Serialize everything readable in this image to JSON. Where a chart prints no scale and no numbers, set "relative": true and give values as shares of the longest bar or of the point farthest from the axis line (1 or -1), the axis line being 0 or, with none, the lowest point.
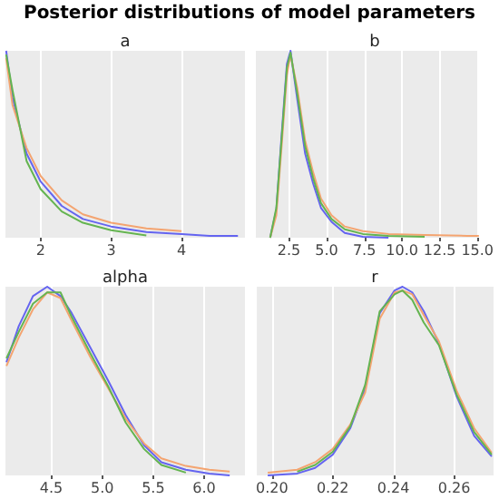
{
  "chart_data": [
    {
      "type": "other",
      "title": "Posterior distributions of model parameters"
    },
    {
      "type": "line",
      "title": "a",
      "relative": true,
      "grid": "x",
      "marker": "none",
      "line_style": "solid",
      "xlim": [
        1.5,
        4.9
      ],
      "xticks": [
        2,
        3,
        4
      ],
      "x": [
        1.51,
        1.6,
        1.8,
        2,
        2.3,
        2.6,
        3,
        3.5,
        4,
        4.4,
        4.8
      ],
      "series": [
        {
          "color": "#6464f0",
          "values": [
            1,
            0.75,
            0.45,
            0.3,
            0.17,
            0.1,
            0.06,
            0.03,
            0.02,
            0.01,
            0.01
          ]
        },
        {
          "color": "#f4a470",
          "values": [
            0.96,
            0.71,
            0.48,
            0.33,
            0.2,
            0.125,
            0.08,
            0.05,
            0.035,
            null,
            null
          ]
        },
        {
          "color": "#64b450",
          "values": [
            0.98,
            0.79,
            0.41,
            0.26,
            0.14,
            0.08,
            0.04,
            0.012,
            null,
            null,
            null
          ]
        }
      ]
    },
    {
      "type": "line",
      "title": "b",
      "relative": true,
      "grid": "x",
      "marker": "none",
      "line_style": "solid",
      "xlim": [
        0.3,
        15.1
      ],
      "xticks": [
        2.5,
        {
          "value": 5,
          "label": "5.0"
        },
        7.5,
        {
          "value": 10,
          "label": "10.0"
        },
        12.5,
        {
          "value": 15,
          "label": "15.0"
        }
      ],
      "x": [
        1.25,
        1.66,
        2.01,
        2.36,
        2.6,
        3.05,
        3.57,
        4.1,
        4.62,
        5.32,
        6.2,
        7.4,
        9.1,
        11.5,
        14.3,
        15.1
      ],
      "series": [
        {
          "color": "#6464f0",
          "values": [
            0,
            0.15,
            0.55,
            0.93,
            1,
            0.74,
            0.45,
            0.29,
            0.16,
            0.085,
            0.025,
            0.005,
            0,
            null,
            null,
            null
          ]
        },
        {
          "color": "#f4a470",
          "values": [
            0,
            0.12,
            0.49,
            0.87,
            0.98,
            0.8,
            0.52,
            0.35,
            0.21,
            0.12,
            0.06,
            0.035,
            0.02,
            0.015,
            0.01,
            0.01
          ]
        },
        {
          "color": "#64b450",
          "values": [
            0,
            0.16,
            0.53,
            0.91,
            0.99,
            0.77,
            0.49,
            0.32,
            0.185,
            0.1,
            0.045,
            0.02,
            0.01,
            0.005,
            null,
            null
          ]
        }
      ]
    },
    {
      "type": "line",
      "title": "alpha",
      "relative": true,
      "grid": "x",
      "marker": "none",
      "line_style": "solid",
      "xlim": [
        4.05,
        6.4
      ],
      "xticks": [
        4.5,
        {
          "value": 5,
          "label": "5.0"
        },
        5.5,
        {
          "value": 6,
          "label": "6.0"
        }
      ],
      "x": [
        4.06,
        4.18,
        4.32,
        4.46,
        4.59,
        4.7,
        4.88,
        5.06,
        5.23,
        5.41,
        5.58,
        5.82,
        6.05,
        6.25
      ],
      "series": [
        {
          "color": "#6464f0",
          "values": [
            0.6,
            0.79,
            0.95,
            1,
            0.95,
            0.86,
            0.68,
            0.5,
            0.32,
            0.16,
            0.07,
            0.03,
            0.01,
            0
          ]
        },
        {
          "color": "#f4a470",
          "values": [
            0.58,
            0.73,
            0.88,
            0.97,
            0.94,
            0.82,
            0.63,
            0.46,
            0.3,
            0.17,
            0.09,
            0.05,
            0.03,
            0.02
          ]
        },
        {
          "color": "#64b450",
          "values": [
            0.62,
            0.76,
            0.91,
            0.97,
            0.97,
            0.84,
            0.65,
            0.47,
            0.28,
            0.14,
            0.055,
            0.015,
            null,
            null
          ]
        }
      ]
    },
    {
      "type": "line",
      "title": "r",
      "relative": true,
      "grid": "x",
      "marker": "none",
      "line_style": "solid",
      "xlim": [
        0.195,
        0.273
      ],
      "xticks": [
        {
          "value": 0.2,
          "label": "0.20"
        },
        {
          "value": 0.22,
          "label": "0.22"
        },
        {
          "value": 0.24,
          "label": "0.24"
        },
        {
          "value": 0.26,
          "label": "0.26"
        }
      ],
      "x": [
        0.1986,
        0.2083,
        0.2142,
        0.22,
        0.2258,
        0.2307,
        0.2355,
        0.2404,
        0.243,
        0.2462,
        0.25,
        0.255,
        0.2608,
        0.2666,
        0.2724
      ],
      "series": [
        {
          "color": "#6464f0",
          "values": [
            0,
            0.01,
            0.04,
            0.11,
            0.25,
            0.46,
            0.86,
            0.98,
            1,
            0.97,
            0.87,
            0.7,
            0.42,
            0.21,
            0.1
          ]
        },
        {
          "color": "#f4a470",
          "values": [
            0.015,
            0.03,
            0.07,
            0.14,
            0.27,
            0.44,
            0.83,
            0.97,
            0.98,
            0.96,
            0.85,
            0.71,
            0.45,
            0.25,
            0.12
          ]
        },
        {
          "color": "#64b450",
          "values": [
            null,
            0.02,
            0.055,
            0.125,
            0.26,
            0.48,
            0.87,
            0.96,
            0.98,
            0.93,
            0.81,
            0.69,
            0.43,
            0.23,
            0.11
          ]
        }
      ]
    }
  ]
}
